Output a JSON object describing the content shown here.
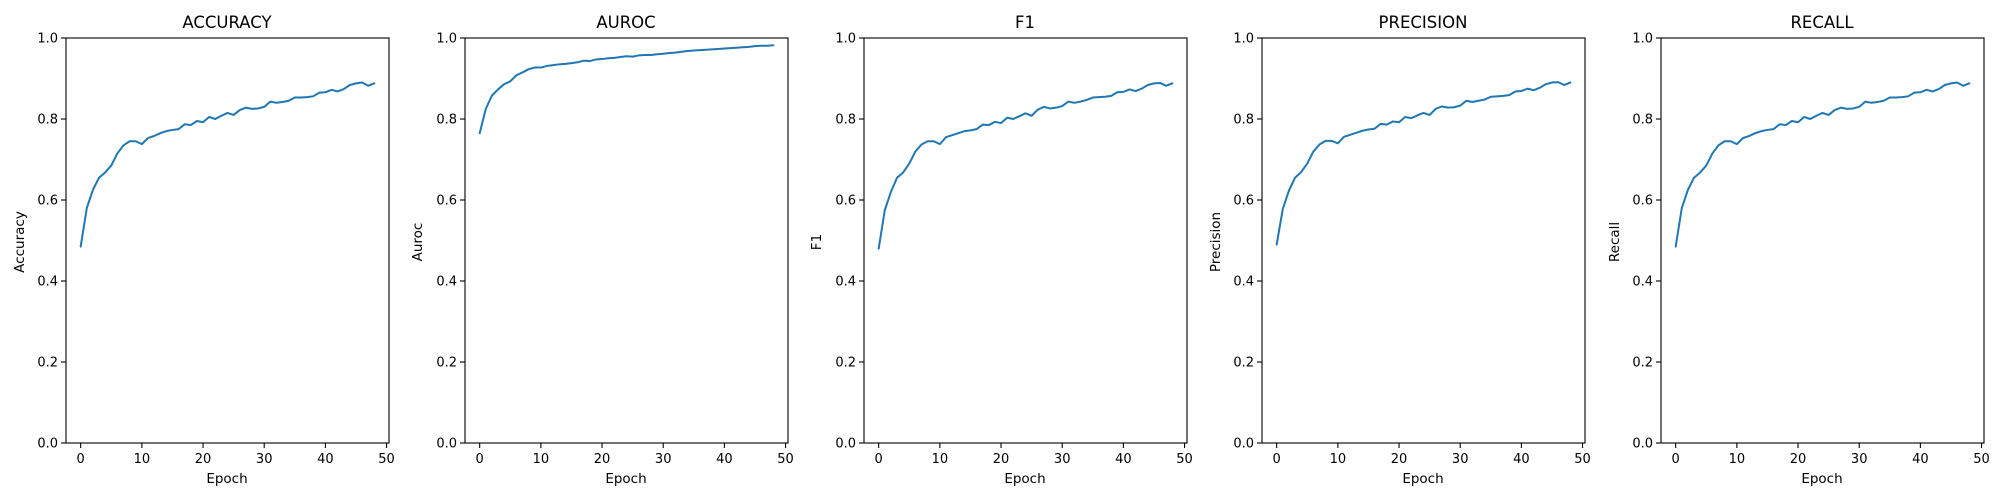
{
  "line_color": "#1f77b4",
  "chart_data": [
    {
      "type": "line",
      "title": "ACCURACY",
      "xlabel": "Epoch",
      "ylabel": "Accuracy",
      "xlim": [
        -2.4,
        50.4
      ],
      "ylim": [
        0,
        1
      ],
      "xticks": [
        0,
        10,
        20,
        30,
        40,
        50
      ],
      "yticks": [
        0.0,
        0.2,
        0.4,
        0.6,
        0.8,
        1.0
      ],
      "grid": false,
      "x": [
        0,
        1,
        2,
        3,
        4,
        5,
        6,
        7,
        8,
        9,
        10,
        11,
        12,
        13,
        14,
        15,
        16,
        17,
        18,
        19,
        20,
        21,
        22,
        23,
        24,
        25,
        26,
        27,
        28,
        29,
        30,
        31,
        32,
        33,
        34,
        35,
        36,
        37,
        38,
        39,
        40,
        41,
        42,
        43,
        44,
        45,
        46,
        47,
        48
      ],
      "y": [
        0.485,
        0.58,
        0.625,
        0.655,
        0.668,
        0.685,
        0.715,
        0.735,
        0.745,
        0.745,
        0.738,
        0.753,
        0.758,
        0.765,
        0.77,
        0.773,
        0.775,
        0.787,
        0.785,
        0.795,
        0.792,
        0.805,
        0.8,
        0.808,
        0.815,
        0.81,
        0.822,
        0.828,
        0.825,
        0.826,
        0.83,
        0.843,
        0.84,
        0.842,
        0.845,
        0.853,
        0.853,
        0.854,
        0.856,
        0.865,
        0.866,
        0.872,
        0.868,
        0.874,
        0.884,
        0.888,
        0.89,
        0.882,
        0.888
      ]
    },
    {
      "type": "line",
      "title": "AUROC",
      "xlabel": "Epoch",
      "ylabel": "Auroc",
      "xlim": [
        -2.4,
        50.4
      ],
      "ylim": [
        0,
        1
      ],
      "xticks": [
        0,
        10,
        20,
        30,
        40,
        50
      ],
      "yticks": [
        0.0,
        0.2,
        0.4,
        0.6,
        0.8,
        1.0
      ],
      "grid": false,
      "x": [
        0,
        1,
        2,
        3,
        4,
        5,
        6,
        7,
        8,
        9,
        10,
        11,
        12,
        13,
        14,
        15,
        16,
        17,
        18,
        19,
        20,
        21,
        22,
        23,
        24,
        25,
        26,
        27,
        28,
        29,
        30,
        31,
        32,
        33,
        34,
        35,
        36,
        37,
        38,
        39,
        40,
        41,
        42,
        43,
        44,
        45,
        46,
        47,
        48
      ],
      "y": [
        0.765,
        0.825,
        0.858,
        0.873,
        0.886,
        0.893,
        0.908,
        0.915,
        0.923,
        0.927,
        0.927,
        0.931,
        0.933,
        0.935,
        0.936,
        0.938,
        0.94,
        0.944,
        0.943,
        0.947,
        0.948,
        0.95,
        0.951,
        0.953,
        0.955,
        0.954,
        0.957,
        0.958,
        0.958,
        0.96,
        0.961,
        0.963,
        0.964,
        0.966,
        0.968,
        0.969,
        0.97,
        0.971,
        0.972,
        0.973,
        0.974,
        0.975,
        0.976,
        0.977,
        0.978,
        0.98,
        0.981,
        0.981,
        0.982
      ]
    },
    {
      "type": "line",
      "title": "F1",
      "xlabel": "Epoch",
      "ylabel": "F1",
      "xlim": [
        -2.4,
        50.4
      ],
      "ylim": [
        0,
        1
      ],
      "xticks": [
        0,
        10,
        20,
        30,
        40,
        50
      ],
      "yticks": [
        0.0,
        0.2,
        0.4,
        0.6,
        0.8,
        1.0
      ],
      "grid": false,
      "x": [
        0,
        1,
        2,
        3,
        4,
        5,
        6,
        7,
        8,
        9,
        10,
        11,
        12,
        13,
        14,
        15,
        16,
        17,
        18,
        19,
        20,
        21,
        22,
        23,
        24,
        25,
        26,
        27,
        28,
        29,
        30,
        31,
        32,
        33,
        34,
        35,
        36,
        37,
        38,
        39,
        40,
        41,
        42,
        43,
        44,
        45,
        46,
        47,
        48
      ],
      "y": [
        0.48,
        0.575,
        0.62,
        0.655,
        0.668,
        0.69,
        0.72,
        0.737,
        0.745,
        0.745,
        0.738,
        0.755,
        0.76,
        0.765,
        0.77,
        0.772,
        0.775,
        0.786,
        0.785,
        0.793,
        0.79,
        0.803,
        0.8,
        0.807,
        0.814,
        0.808,
        0.823,
        0.83,
        0.826,
        0.828,
        0.832,
        0.843,
        0.84,
        0.843,
        0.847,
        0.853,
        0.854,
        0.855,
        0.857,
        0.866,
        0.867,
        0.873,
        0.869,
        0.875,
        0.884,
        0.888,
        0.889,
        0.882,
        0.888
      ]
    },
    {
      "type": "line",
      "title": "PRECISION",
      "xlabel": "Epoch",
      "ylabel": "Precision",
      "xlim": [
        -2.4,
        50.4
      ],
      "ylim": [
        0,
        1
      ],
      "xticks": [
        0,
        10,
        20,
        30,
        40,
        50
      ],
      "yticks": [
        0.0,
        0.2,
        0.4,
        0.6,
        0.8,
        1.0
      ],
      "grid": false,
      "x": [
        0,
        1,
        2,
        3,
        4,
        5,
        6,
        7,
        8,
        9,
        10,
        11,
        12,
        13,
        14,
        15,
        16,
        17,
        18,
        19,
        20,
        21,
        22,
        23,
        24,
        25,
        26,
        27,
        28,
        29,
        30,
        31,
        32,
        33,
        34,
        35,
        36,
        37,
        38,
        39,
        40,
        41,
        42,
        43,
        44,
        45,
        46,
        47,
        48
      ],
      "y": [
        0.49,
        0.578,
        0.623,
        0.655,
        0.669,
        0.69,
        0.72,
        0.737,
        0.746,
        0.746,
        0.74,
        0.756,
        0.761,
        0.766,
        0.771,
        0.774,
        0.776,
        0.788,
        0.786,
        0.794,
        0.792,
        0.805,
        0.802,
        0.809,
        0.815,
        0.81,
        0.825,
        0.831,
        0.828,
        0.829,
        0.833,
        0.845,
        0.842,
        0.845,
        0.848,
        0.855,
        0.856,
        0.857,
        0.859,
        0.868,
        0.869,
        0.875,
        0.871,
        0.877,
        0.886,
        0.89,
        0.891,
        0.884,
        0.89
      ]
    },
    {
      "type": "line",
      "title": "RECALL",
      "xlabel": "Epoch",
      "ylabel": "Recall",
      "xlim": [
        -2.4,
        50.4
      ],
      "ylim": [
        0,
        1
      ],
      "xticks": [
        0,
        10,
        20,
        30,
        40,
        50
      ],
      "yticks": [
        0.0,
        0.2,
        0.4,
        0.6,
        0.8,
        1.0
      ],
      "grid": false,
      "x": [
        0,
        1,
        2,
        3,
        4,
        5,
        6,
        7,
        8,
        9,
        10,
        11,
        12,
        13,
        14,
        15,
        16,
        17,
        18,
        19,
        20,
        21,
        22,
        23,
        24,
        25,
        26,
        27,
        28,
        29,
        30,
        31,
        32,
        33,
        34,
        35,
        36,
        37,
        38,
        39,
        40,
        41,
        42,
        43,
        44,
        45,
        46,
        47,
        48
      ],
      "y": [
        0.485,
        0.58,
        0.625,
        0.655,
        0.668,
        0.685,
        0.715,
        0.735,
        0.745,
        0.745,
        0.738,
        0.753,
        0.758,
        0.765,
        0.77,
        0.773,
        0.775,
        0.787,
        0.785,
        0.795,
        0.792,
        0.805,
        0.8,
        0.808,
        0.815,
        0.81,
        0.822,
        0.828,
        0.825,
        0.826,
        0.83,
        0.843,
        0.84,
        0.842,
        0.845,
        0.853,
        0.853,
        0.854,
        0.856,
        0.865,
        0.866,
        0.872,
        0.868,
        0.874,
        0.884,
        0.888,
        0.89,
        0.882,
        0.888
      ]
    }
  ]
}
